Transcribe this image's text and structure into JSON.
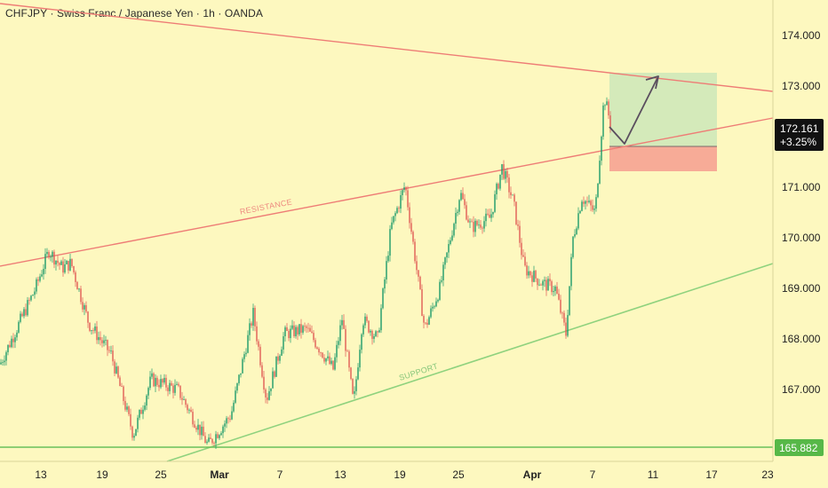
{
  "header": {
    "title": "CHFJPY · Swiss Franc / Japanese Yen · 1h · OANDA"
  },
  "chart_data": {
    "type": "candlestick",
    "symbol": "CHFJPY",
    "timeframe": "1h",
    "x_tick_labels": [
      "13",
      "19",
      "25",
      "Mar",
      "7",
      "13",
      "19",
      "25",
      "Apr",
      "7",
      "11",
      "17",
      "23"
    ],
    "y_tick_labels": [
      "167.000",
      "168.000",
      "169.000",
      "170.000",
      "171.000",
      "172.000",
      "173.000",
      "174.000"
    ],
    "ylim": [
      165.5,
      174.6
    ],
    "last_price": "172.161",
    "change_pct": "+3.25%",
    "support_level": "165.882",
    "price_path": [
      [
        0,
        167.5
      ],
      [
        40,
        169.0
      ],
      [
        55,
        169.75
      ],
      [
        70,
        169.4
      ],
      [
        80,
        169.5
      ],
      [
        100,
        168.3
      ],
      [
        125,
        167.7
      ],
      [
        150,
        166.1
      ],
      [
        170,
        167.2
      ],
      [
        200,
        167.0
      ],
      [
        234,
        165.9
      ],
      [
        260,
        166.5
      ],
      [
        285,
        168.5
      ],
      [
        300,
        166.8
      ],
      [
        320,
        168.1
      ],
      [
        345,
        168.2
      ],
      [
        375,
        167.4
      ],
      [
        385,
        168.4
      ],
      [
        398,
        166.7
      ],
      [
        408,
        168.4
      ],
      [
        425,
        168.0
      ],
      [
        440,
        170.2
      ],
      [
        456,
        171.05
      ],
      [
        468,
        169.5
      ],
      [
        478,
        168.2
      ],
      [
        495,
        169.0
      ],
      [
        518,
        170.9
      ],
      [
        530,
        170.2
      ],
      [
        552,
        170.4
      ],
      [
        565,
        171.4
      ],
      [
        578,
        170.7
      ],
      [
        590,
        169.4
      ],
      [
        610,
        169.1
      ],
      [
        625,
        169.0
      ],
      [
        637,
        168.1
      ],
      [
        645,
        170.0
      ],
      [
        655,
        170.8
      ],
      [
        670,
        170.5
      ],
      [
        680,
        172.8
      ],
      [
        688,
        172.2
      ]
    ],
    "annotations": {
      "resistance_label": "RESISTANCE",
      "support_label": "SUPPORT"
    },
    "colors": {
      "background": "#fdf8bf",
      "up_candle": "#1a9a6a",
      "down_candle": "#e05a55",
      "resistance_line": "#ee7d76",
      "support_line": "#8fd27e",
      "horizontal_support": "#6ac05a",
      "target_zone": "#cde8b8",
      "stop_zone": "#f7a795",
      "arrow": "#5a4e5e",
      "price_badge": "#111111",
      "support_badge": "#57b848"
    }
  }
}
